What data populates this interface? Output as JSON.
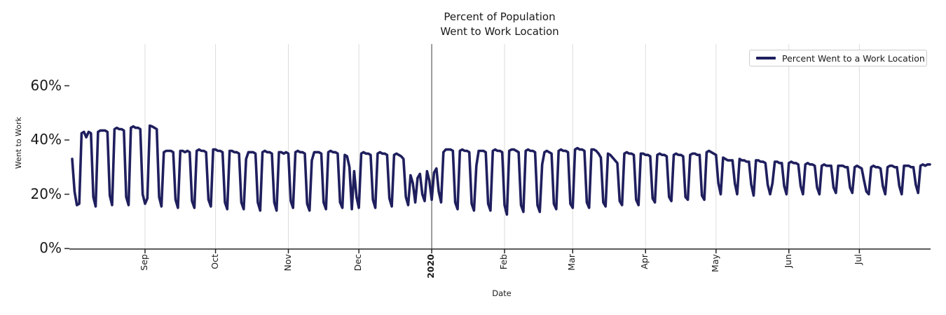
{
  "figure": {
    "background": "#ffffff",
    "text_color": "#1a1a1a"
  },
  "chart_data": {
    "type": "line",
    "title": "Percent of Population\nWent to Work Location",
    "title_lines": [
      "Percent of Population",
      "Went to Work Location"
    ],
    "xlabel": "Date",
    "ylabel": "Went to Work",
    "legend": {
      "position": "upper right",
      "entries": [
        {
          "label": "Percent Went to a Work Location",
          "color": "#1f1f5e"
        }
      ]
    },
    "grid": "vertical month gridlines, light gray; dark vertical rule at 2020",
    "colors": {
      "line": "#1f1f5e",
      "gridline": "#dcdcdc",
      "year_rule": "#3c3c3c",
      "axis": "#262626"
    },
    "ylim": [
      0,
      75
    ],
    "y_ticks": [
      {
        "label": "0%",
        "value": 0
      },
      {
        "label": "20%",
        "value": 20
      },
      {
        "label": "40%",
        "value": 40
      },
      {
        "label": "60%",
        "value": 60
      }
    ],
    "x_start_date": "2019-08-01",
    "x_unit": "day",
    "x_ticks": [
      {
        "label": "Sep",
        "day": 31,
        "emphasis": false
      },
      {
        "label": "Oct",
        "day": 61,
        "emphasis": false
      },
      {
        "label": "Nov",
        "day": 92,
        "emphasis": false
      },
      {
        "label": "Dec",
        "day": 122,
        "emphasis": false
      },
      {
        "label": "2020",
        "day": 153,
        "emphasis": true
      },
      {
        "label": "Feb",
        "day": 184,
        "emphasis": false
      },
      {
        "label": "Mar",
        "day": 213,
        "emphasis": false
      },
      {
        "label": "Apr",
        "day": 244,
        "emphasis": false
      },
      {
        "label": "May",
        "day": 274,
        "emphasis": false
      },
      {
        "label": "Jun",
        "day": 305,
        "emphasis": false
      },
      {
        "label": "Jul",
        "day": 335,
        "emphasis": false
      }
    ],
    "series": [
      {
        "name": "Percent Went to a Work Location",
        "color": "#1f1f5e",
        "unit": "percent",
        "values": [
          33,
          21,
          16,
          16.5,
          42.5,
          43,
          41,
          43,
          42.5,
          19,
          15.5,
          43,
          43.5,
          43.5,
          43.5,
          43,
          19.5,
          16,
          44,
          44.5,
          44,
          44,
          43.5,
          19,
          16,
          44.5,
          45,
          44.5,
          44.5,
          44,
          20,
          16.5,
          18.5,
          45.3,
          45,
          44.5,
          44,
          19,
          15.5,
          35.5,
          36,
          36,
          36,
          35.5,
          18,
          15,
          36,
          36,
          35.5,
          36,
          35.5,
          17.5,
          15,
          36,
          36.5,
          36,
          36,
          35.5,
          18,
          15.5,
          36.5,
          36.5,
          36,
          36,
          35.5,
          17,
          14.5,
          36,
          36,
          35.5,
          35.5,
          35,
          17,
          14.5,
          33,
          35.5,
          35.5,
          35.5,
          35,
          17,
          14,
          35.5,
          36,
          35.5,
          35.5,
          35,
          17,
          14,
          35.5,
          35.5,
          35,
          35.5,
          35,
          17.5,
          15,
          35.5,
          36,
          35.5,
          35.5,
          35,
          16.5,
          14,
          32.5,
          35.5,
          35.5,
          35.5,
          35,
          17,
          14.5,
          35.5,
          36,
          35.5,
          35.5,
          35,
          17,
          15,
          34.5,
          34,
          30,
          14.5,
          28.5,
          19,
          15,
          35,
          35.5,
          35,
          35,
          34.5,
          18,
          15,
          35,
          35.5,
          35,
          35,
          34.5,
          18.5,
          15.5,
          34.5,
          35,
          34.5,
          34,
          33,
          19,
          16,
          27,
          24,
          17,
          26,
          27.5,
          20,
          17.5,
          28.5,
          25,
          18,
          28,
          29.5,
          21,
          17,
          35.5,
          36.5,
          36.5,
          36.5,
          36,
          17,
          14.5,
          36,
          36.5,
          36,
          36,
          35.5,
          16.5,
          14,
          30.5,
          36,
          36,
          36,
          35.5,
          16.5,
          14,
          36,
          36.5,
          36,
          36,
          35.5,
          16,
          12.5,
          36,
          36.5,
          36.5,
          36,
          35.5,
          16,
          13.5,
          36,
          36.5,
          36,
          36,
          35.5,
          16,
          13.5,
          31,
          35.5,
          36,
          35.5,
          35,
          16.5,
          14.5,
          36,
          36.5,
          36,
          36,
          35.5,
          16.5,
          15,
          36.5,
          37,
          36.5,
          36.5,
          36,
          17,
          15,
          36.5,
          36.5,
          36,
          35,
          33.5,
          17,
          15.5,
          35,
          34.5,
          33.5,
          32.5,
          31.5,
          17.5,
          16,
          35,
          35.5,
          35,
          35,
          34.5,
          18,
          16,
          35,
          35,
          34.5,
          34.5,
          34,
          18.5,
          17,
          34.5,
          35,
          34.5,
          34.5,
          34,
          19,
          17.5,
          34.5,
          35,
          34.5,
          34.5,
          34,
          19,
          18,
          34.5,
          35,
          35,
          34.5,
          34.5,
          19.5,
          18,
          35.5,
          36,
          35.5,
          35,
          34.5,
          24,
          20,
          33.5,
          33,
          32.5,
          32.5,
          32.5,
          24,
          20,
          33,
          32.5,
          32.5,
          32,
          32,
          23.5,
          19.5,
          32.5,
          32.5,
          32,
          32,
          31.5,
          23.5,
          20,
          24,
          32,
          32,
          31.5,
          31.5,
          23,
          20,
          31.5,
          32,
          31.5,
          31.5,
          31,
          23,
          20,
          31,
          31.5,
          31,
          31,
          30.5,
          22.5,
          20,
          30.5,
          31,
          30.5,
          30.5,
          30.5,
          22.5,
          20.5,
          30.5,
          30.5,
          30.5,
          30,
          30,
          22.5,
          20.5,
          30,
          30.5,
          30,
          29.5,
          25,
          21,
          20,
          30,
          30.5,
          30,
          30,
          29.5,
          23,
          20,
          30,
          30.5,
          30.5,
          30,
          30,
          23,
          20,
          30.5,
          30.5,
          30.5,
          30,
          30,
          23.5,
          20.5,
          30.5,
          31,
          30.5,
          31,
          31
        ]
      }
    ]
  }
}
